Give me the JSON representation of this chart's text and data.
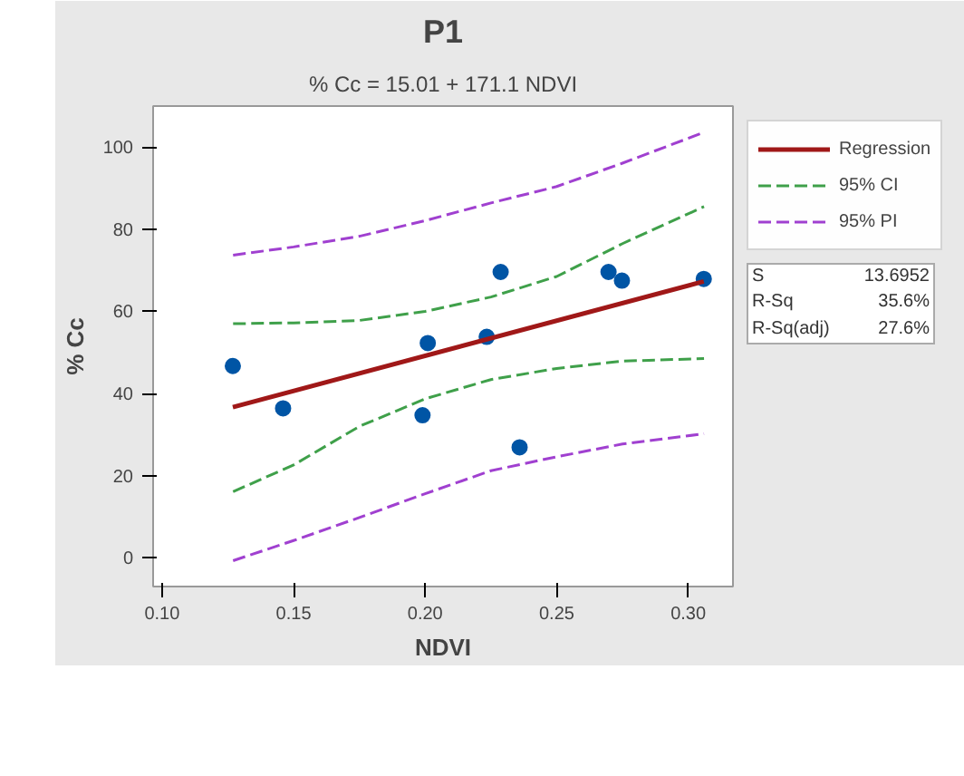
{
  "chart_data": {
    "type": "scatter",
    "title": "P1",
    "subtitle": "% Cc = 15.01 + 171.1 NDVI",
    "xlabel": "NDVI",
    "ylabel": "% Cc",
    "xlim": [
      0.0966,
      0.317
    ],
    "ylim": [
      -7,
      110
    ],
    "xticks": [
      {
        "value": 0.1,
        "label": "0.10"
      },
      0.15,
      {
        "value": 0.2,
        "label": "0.20"
      },
      0.25,
      {
        "value": 0.3,
        "label": "0.30"
      }
    ],
    "yticks": [
      0,
      20,
      40,
      60,
      80,
      100
    ],
    "grid": false,
    "legend": "right",
    "x": [
      0.1269,
      0.146,
      0.199,
      0.201,
      0.2234,
      0.2287,
      0.2359,
      0.2697,
      0.2748,
      0.3059
    ],
    "series": [
      {
        "marker": "circle",
        "color": "#0055a5",
        "values": [
          46.7,
          36.4,
          34.7,
          52.3,
          53.8,
          69.6,
          26.9,
          69.6,
          67.5,
          67.9
        ]
      },
      {
        "type": "line",
        "name": "Regression",
        "color": "#a01818",
        "line_style": "solid",
        "x": [
          0.1269,
          0.3059
        ],
        "values": [
          36.7,
          67.3
        ]
      },
      {
        "type": "line",
        "name": "95% CI",
        "color": "#3fa04a",
        "line_style": "dashed",
        "x": [
          0.127,
          0.15,
          0.175,
          0.2,
          0.225,
          0.25,
          0.275,
          0.306
        ],
        "values": [
          57.0,
          57.2,
          57.8,
          60.0,
          63.5,
          68.5,
          76.5,
          85.5
        ]
      },
      {
        "type": "line",
        "color": "#3fa04a",
        "line_style": "dashed",
        "x": [
          0.127,
          0.15,
          0.175,
          0.2,
          0.225,
          0.25,
          0.275,
          0.306
        ],
        "values": [
          16.1,
          22.6,
          32.0,
          38.7,
          43.4,
          46.1,
          47.9,
          48.5
        ]
      },
      {
        "type": "line",
        "name": "95% PI",
        "color": "#a040d0",
        "line_style": "dashed",
        "x": [
          0.127,
          0.15,
          0.175,
          0.2,
          0.225,
          0.25,
          0.275,
          0.306
        ],
        "values": [
          73.7,
          75.7,
          78.3,
          82.1,
          86.4,
          90.4,
          96.1,
          103.6
        ]
      },
      {
        "type": "line",
        "color": "#a040d0",
        "line_style": "dashed",
        "x": [
          0.127,
          0.15,
          0.175,
          0.2,
          0.225,
          0.25,
          0.275,
          0.306
        ],
        "values": [
          -0.7,
          4.2,
          9.8,
          15.6,
          21.2,
          24.6,
          27.7,
          30.2
        ]
      }
    ],
    "annotations": [
      "S 13.6952",
      "R-Sq 35.6%",
      "R-Sq(adj) 27.6%"
    ]
  }
}
